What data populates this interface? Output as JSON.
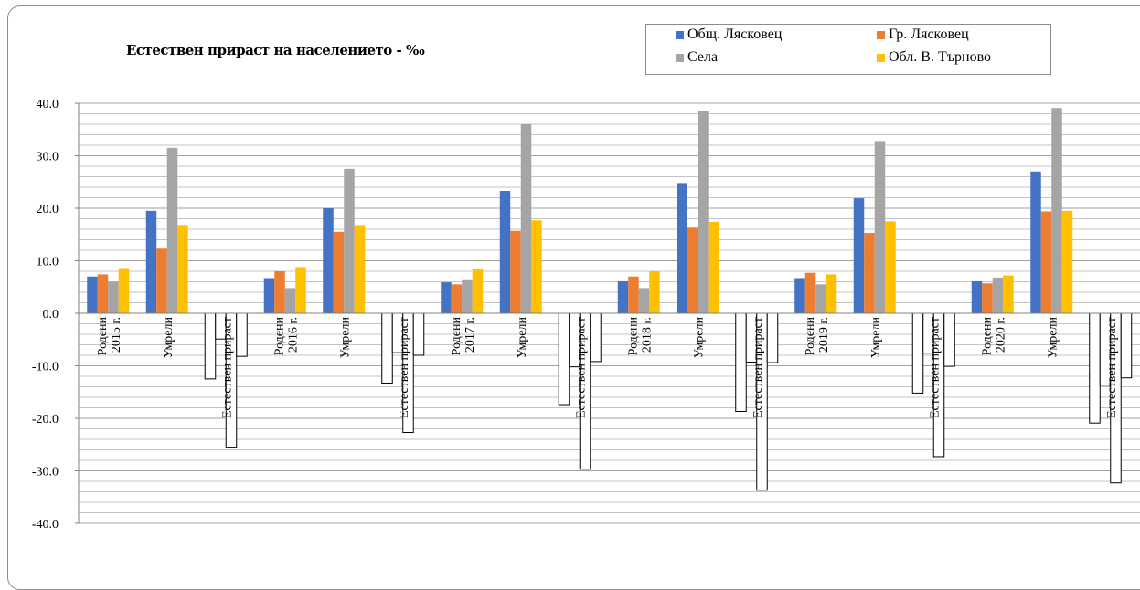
{
  "chart_data": {
    "type": "bar",
    "title": "Естествен прираст на населението - ‰",
    "ylim": [
      -40,
      40
    ],
    "yticks": [
      "40.0",
      "30.0",
      "20.0",
      "10.0",
      "0.0",
      "-10.0",
      "-20.0",
      "-30.0",
      "-40.0"
    ],
    "legend_position": "top-right",
    "grid": true,
    "categories": [
      "Родени 2015 г.",
      "Умрели",
      "Естествен прираст",
      "Родени 2016 г.",
      "Умрели",
      "Естествен прираст",
      "Родени 2017 г.",
      "Умрели",
      "Естествен прираст",
      "Родени 2018 г.",
      "Умрели",
      "Естествен прираст",
      "Родени 2019 г.",
      "Умрели",
      "Естествен прираст",
      "Родени 2020 г.",
      "Умрели",
      "Естествен прираст"
    ],
    "series": [
      {
        "name": "Общ. Лясковец",
        "color": "#4472c4",
        "values": [
          7.0,
          19.5,
          -12.5,
          6.7,
          20.0,
          -13.3,
          5.9,
          23.3,
          -17.4,
          6.1,
          24.8,
          -18.7,
          6.7,
          21.9,
          -15.2,
          6.1,
          27.0,
          -20.9
        ]
      },
      {
        "name": "Гр. Лясковец",
        "color": "#ed7d31",
        "values": [
          7.4,
          12.3,
          -4.9,
          8.0,
          15.5,
          -7.5,
          5.5,
          15.7,
          -10.2,
          7.0,
          16.3,
          -9.3,
          7.7,
          15.3,
          -7.6,
          5.7,
          19.4,
          -13.7
        ]
      },
      {
        "name": "Села",
        "color": "#a5a5a5",
        "values": [
          6.0,
          31.5,
          -25.5,
          4.8,
          27.5,
          -22.7,
          6.3,
          36.0,
          -29.7,
          4.8,
          38.5,
          -33.7,
          5.5,
          32.8,
          -27.3,
          6.8,
          39.1,
          -32.3
        ]
      },
      {
        "name": "Обл. В. Търново",
        "color": "#ffc000",
        "values": [
          8.6,
          16.8,
          -8.2,
          8.8,
          16.8,
          -8.0,
          8.5,
          17.7,
          -9.2,
          8.0,
          17.4,
          -9.4,
          7.4,
          17.5,
          -10.1,
          7.2,
          19.5,
          -12.3
        ]
      }
    ]
  }
}
